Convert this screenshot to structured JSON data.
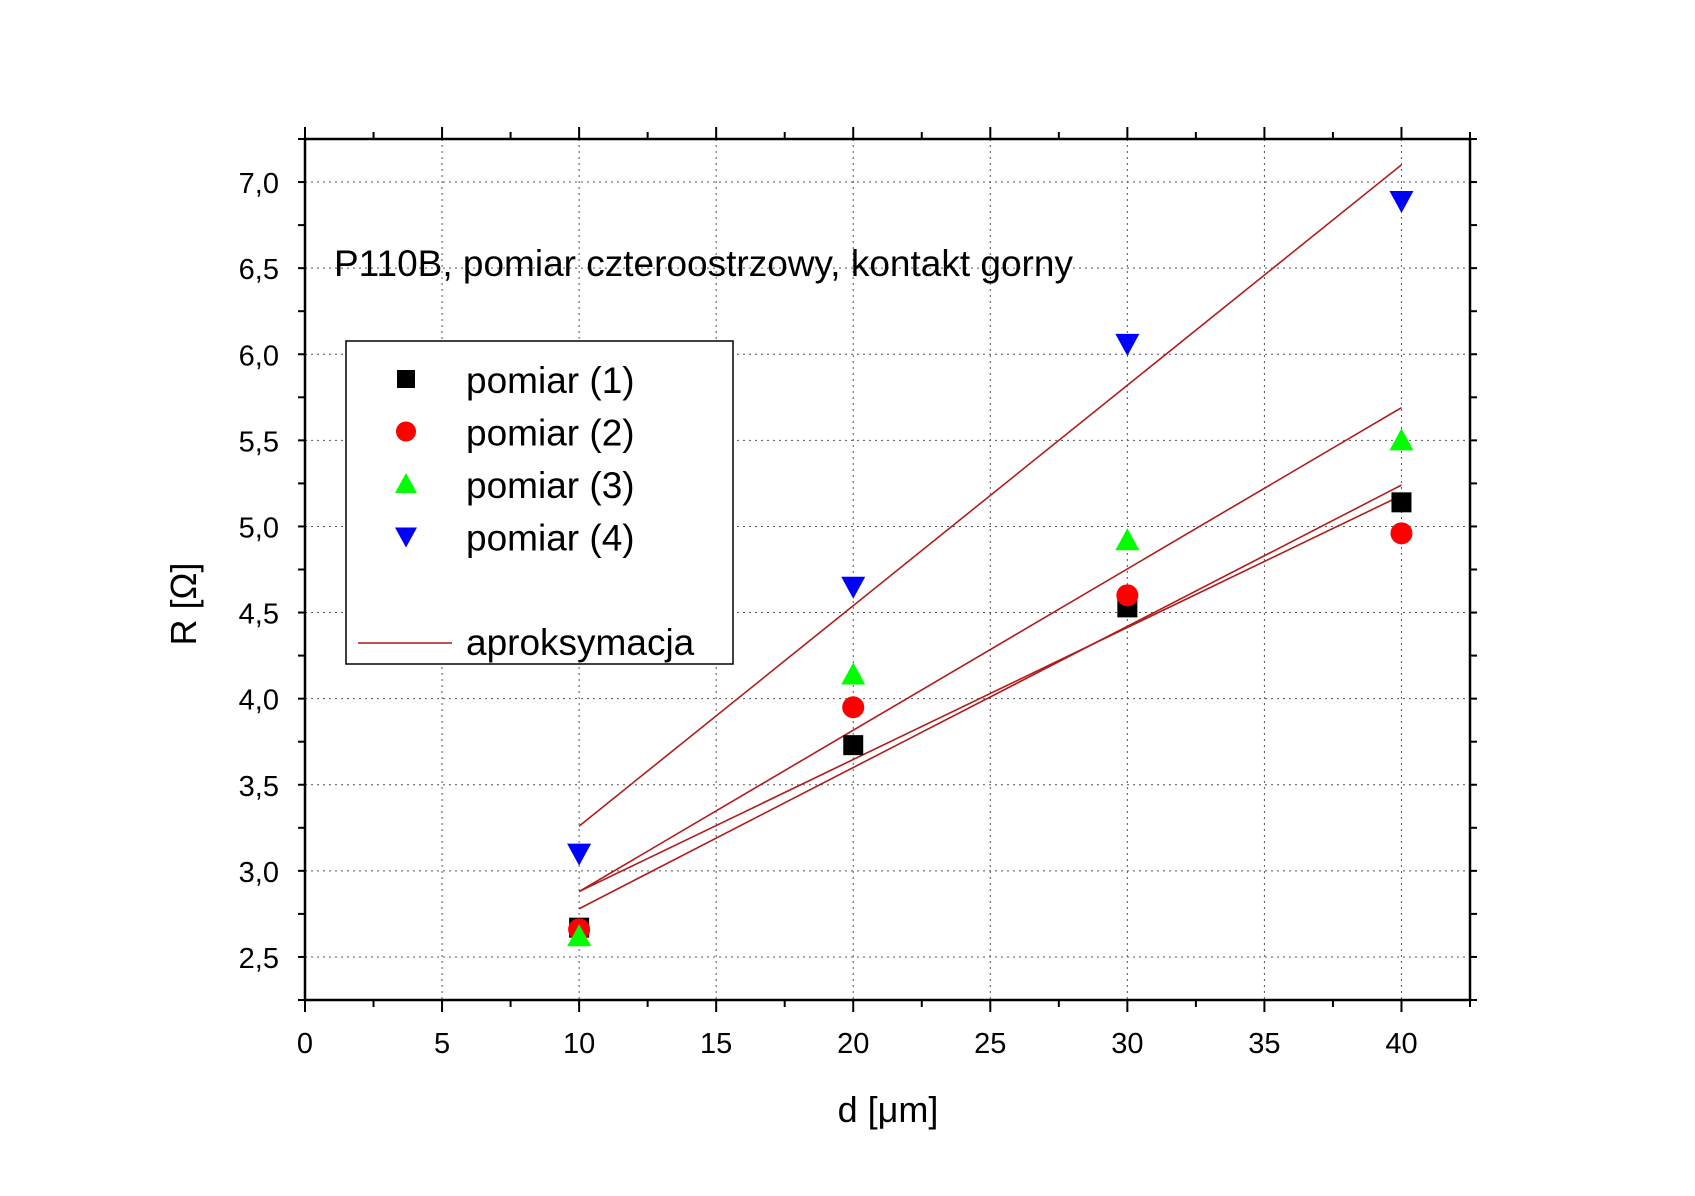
{
  "chart_data": {
    "type": "scatter",
    "annotation": "P110B, pomiar czteroostrzowy, kontakt gorny",
    "xlabel": "d [μm]",
    "ylabel": "R [Ω]",
    "xlim": [
      0,
      42.5
    ],
    "ylim": [
      2.25,
      7.25
    ],
    "x_ticks": [
      0,
      5,
      10,
      15,
      20,
      25,
      30,
      35,
      40
    ],
    "x_tick_labels": [
      "0",
      "5",
      "10",
      "15",
      "20",
      "25",
      "30",
      "35",
      "40"
    ],
    "y_ticks": [
      2.5,
      3.0,
      3.5,
      4.0,
      4.5,
      5.0,
      5.5,
      6.0,
      6.5,
      7.0
    ],
    "y_tick_labels": [
      "2,5",
      "3,0",
      "3,5",
      "4,0",
      "4,5",
      "5,0",
      "5,5",
      "6,0",
      "6,5",
      "7,0"
    ],
    "grid": true,
    "legend_position": "left",
    "series": [
      {
        "name": "pomiar (1)",
        "marker": "square",
        "color": "#000000",
        "x": [
          10,
          20,
          30,
          40
        ],
        "y": [
          2.67,
          3.73,
          4.53,
          5.14
        ],
        "fit": [
          2.88,
          5.18
        ]
      },
      {
        "name": "pomiar (2)",
        "marker": "circle",
        "color": "#ff0000",
        "x": [
          10,
          20,
          30,
          40
        ],
        "y": [
          2.66,
          3.95,
          4.6,
          4.96
        ],
        "fit": [
          2.78,
          5.24
        ]
      },
      {
        "name": "pomiar (3)",
        "marker": "triangle-up",
        "color": "#00ff00",
        "x": [
          10,
          20,
          30,
          40
        ],
        "y": [
          2.62,
          4.14,
          4.92,
          5.5
        ],
        "fit": [
          2.88,
          5.69
        ]
      },
      {
        "name": "pomiar (4)",
        "marker": "triangle-down",
        "color": "#0000ff",
        "x": [
          10,
          20,
          30,
          40
        ],
        "y": [
          3.1,
          4.65,
          6.06,
          6.89
        ],
        "fit": [
          3.26,
          7.1
        ]
      }
    ],
    "fit_line": {
      "name": "aproksymacja",
      "color": "#b01c1c",
      "x_range": [
        10,
        40
      ]
    }
  }
}
